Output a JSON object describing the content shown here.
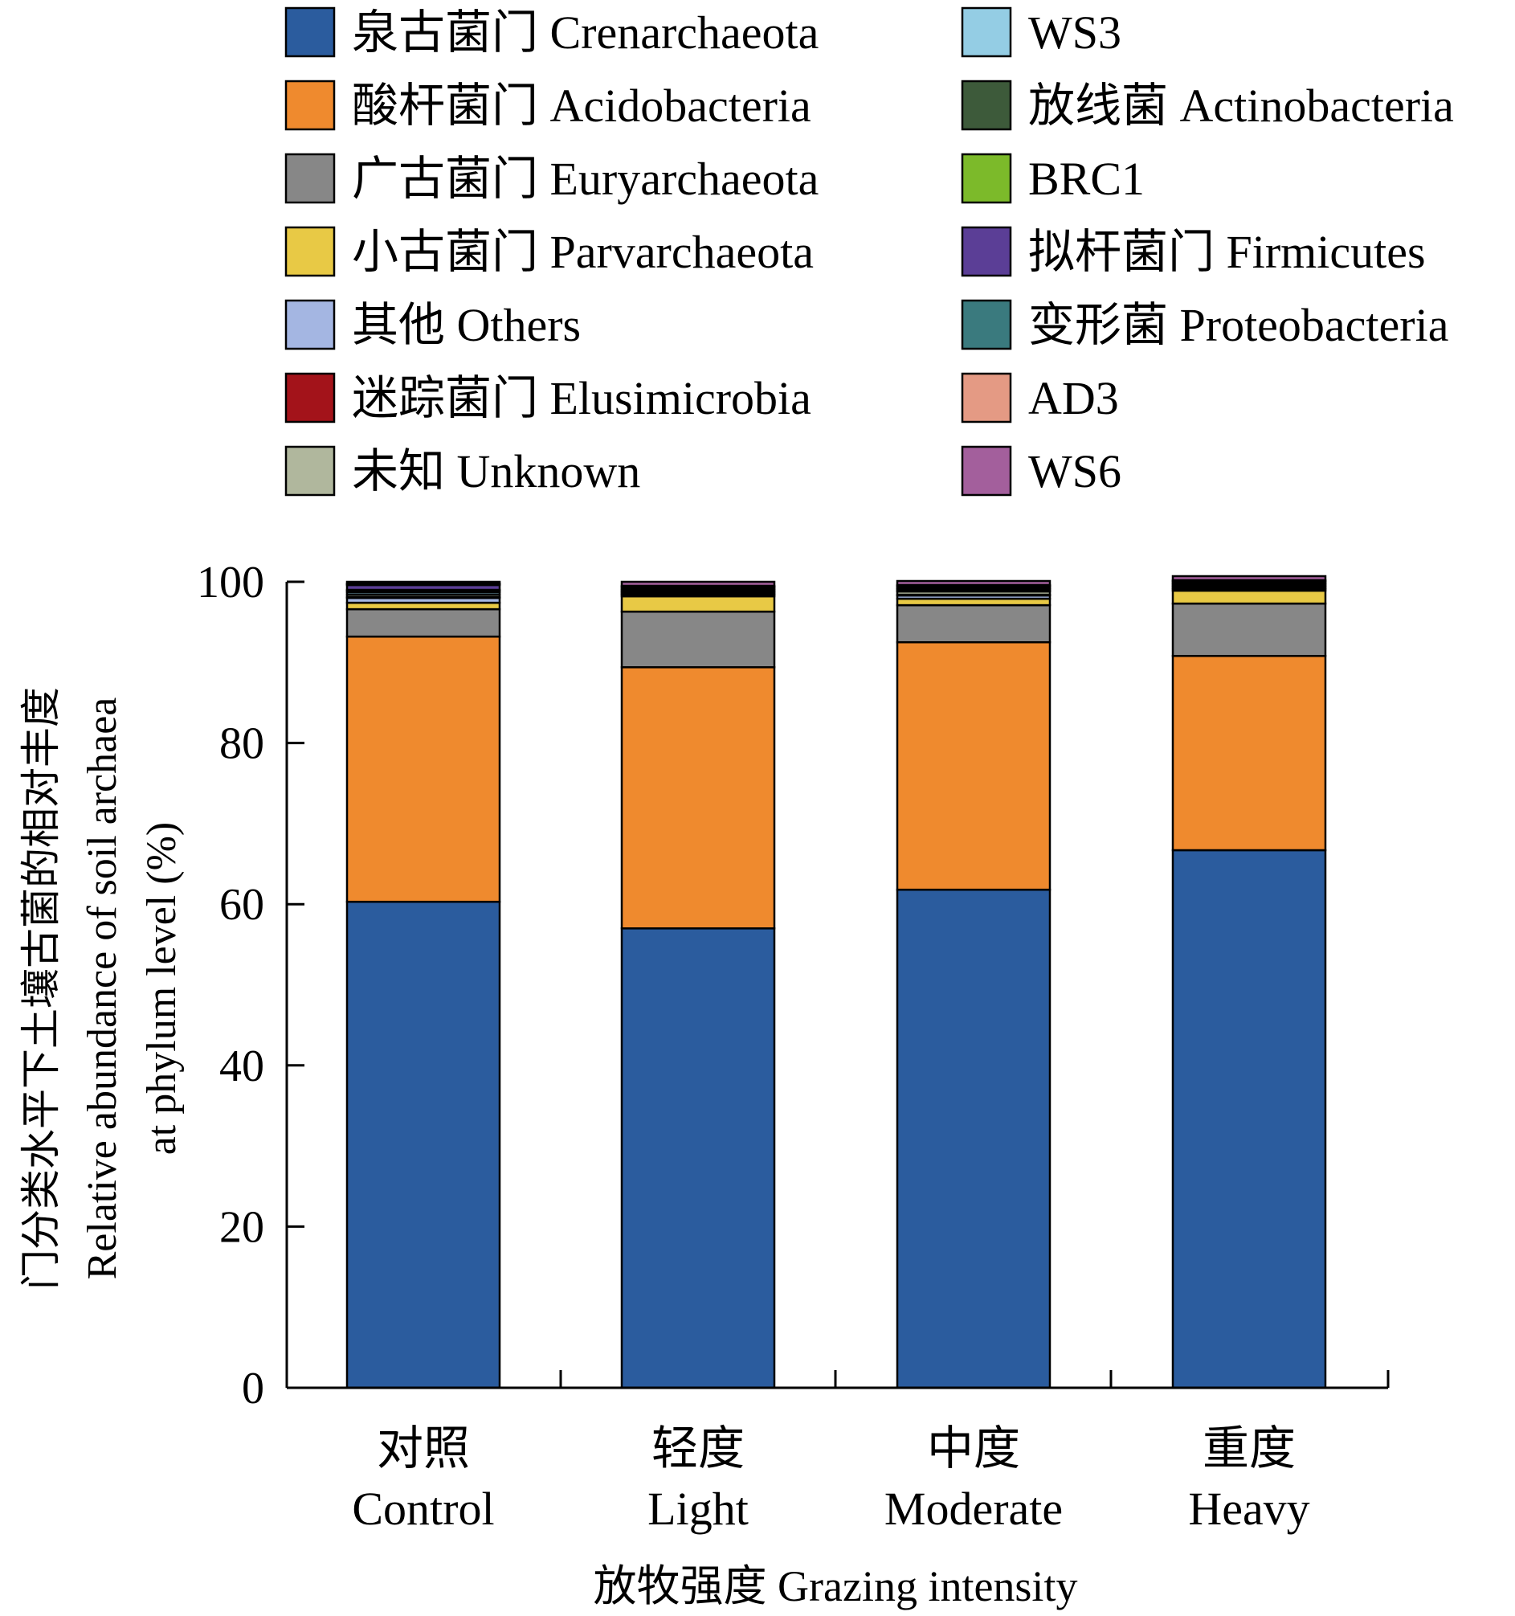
{
  "chart_data": {
    "type": "bar",
    "stacked": true,
    "xlabel": "放牧强度 Grazing intensity",
    "ylabel_lines": [
      "门分类水平下土壤古菌的相对丰度",
      "Relative abundance of soil archaea",
      "at phylum level (%)"
    ],
    "ylim": [
      0,
      100
    ],
    "yticks": [
      0,
      20,
      40,
      60,
      80,
      100
    ],
    "grid": false,
    "legend_position": "top",
    "categories": [
      {
        "zh": "对照",
        "en": "Control"
      },
      {
        "zh": "轻度",
        "en": "Light"
      },
      {
        "zh": "中度",
        "en": "Moderate"
      },
      {
        "zh": "重度",
        "en": "Heavy"
      }
    ],
    "series": [
      {
        "name": "泉古菌门 Crenarchaeota",
        "color": "#2b5c9e",
        "values": [
          60.3,
          57.0,
          61.8,
          66.7
        ]
      },
      {
        "name": "酸杆菌门 Acidobacteria",
        "color": "#ef8a2e",
        "values": [
          32.9,
          32.4,
          30.7,
          24.1
        ]
      },
      {
        "name": "广古菌门 Euryarchaeota",
        "color": "#878787",
        "values": [
          3.4,
          6.9,
          4.6,
          6.5
        ]
      },
      {
        "name": "小古菌门 Parvarchaeota",
        "color": "#e8c945",
        "values": [
          0.8,
          1.9,
          0.8,
          1.6
        ]
      },
      {
        "name": "其他 Others",
        "color": "#a4b6e2",
        "values": [
          0.6,
          0.2,
          0.4,
          0.2
        ]
      },
      {
        "name": "迷踪菌门 Elusimicrobia",
        "color": "#a3131a",
        "values": [
          0.1,
          0.1,
          0.1,
          0.1
        ]
      },
      {
        "name": "未知 Unknown",
        "color": "#b0b79d",
        "values": [
          0.3,
          0.2,
          0.4,
          0.2
        ]
      },
      {
        "name": "WS3",
        "color": "#94cde4",
        "values": [
          0.3,
          0.1,
          0.1,
          0.1
        ]
      },
      {
        "name": "放线菌 Actinobacteria",
        "color": "#3d5a3a",
        "values": [
          0.2,
          0.2,
          0.2,
          0.2
        ]
      },
      {
        "name": "BRC1",
        "color": "#7cba2a",
        "values": [
          0.1,
          0.1,
          0.1,
          0.1
        ]
      },
      {
        "name": "拟杆菌门 Firmicutes",
        "color": "#5b3e96",
        "values": [
          0.6,
          0.2,
          0.2,
          0.2
        ]
      },
      {
        "name": "变形菌 Proteobacteria",
        "color": "#3a7a7e",
        "values": [
          0.1,
          0.1,
          0.1,
          0.1
        ]
      },
      {
        "name": "AD3",
        "color": "#e49a84",
        "values": [
          0.1,
          0.1,
          0.1,
          0.1
        ]
      },
      {
        "name": "WS6",
        "color": "#a35f9c",
        "values": [
          0.2,
          0.5,
          0.5,
          0.5
        ]
      }
    ]
  }
}
